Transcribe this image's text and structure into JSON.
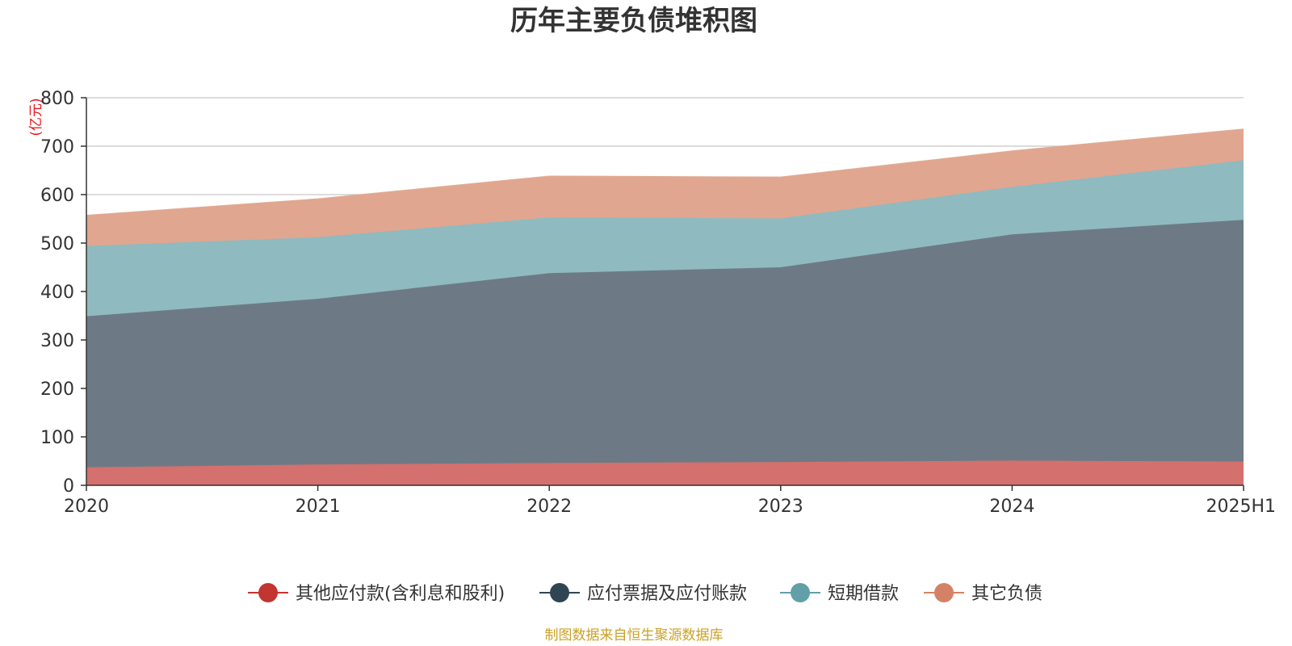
{
  "chart_data": {
    "type": "area",
    "stacked": true,
    "title": "历年主要负债堆积图",
    "unit_label": "(亿元)",
    "categories": [
      "2020",
      "2021",
      "2022",
      "2023",
      "2024",
      "2025H1"
    ],
    "series": [
      {
        "name": "其他应付款(含利息和股利)",
        "color": "#c23531",
        "fill": "#d4706d",
        "values": [
          37,
          43,
          46,
          48,
          51,
          49
        ]
      },
      {
        "name": "应付票据及应付账款",
        "color": "#2f4554",
        "fill": "#6d7a85",
        "values": [
          312,
          342,
          392,
          402,
          467,
          499
        ]
      },
      {
        "name": "短期借款",
        "color": "#61a0a8",
        "fill": "#8fbac0",
        "values": [
          145,
          127,
          115,
          101,
          98,
          123
        ]
      },
      {
        "name": "其它负债",
        "color": "#d48265",
        "fill": "#e0a68f",
        "values": [
          63,
          79,
          85,
          85,
          74,
          64
        ]
      }
    ],
    "ylim": [
      0,
      800
    ],
    "yticks": [
      "0",
      "100",
      "200",
      "300",
      "400",
      "500",
      "600",
      "700",
      "800"
    ],
    "grid": true,
    "legend": "bottom",
    "source": "制图数据来自恒生聚源数据库"
  }
}
